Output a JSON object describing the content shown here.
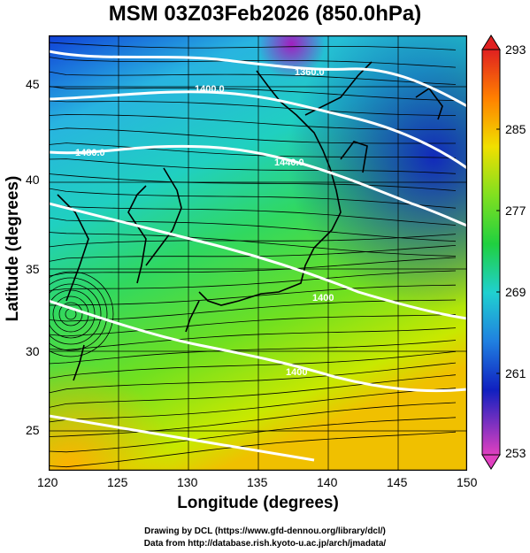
{
  "title": "MSM 03Z03Feb2026 (850.0hPa)",
  "axes": {
    "xlabel": "Longitude (degrees)",
    "ylabel": "Latitude  (degrees)",
    "xticks": [
      "120",
      "125",
      "130",
      "135",
      "140",
      "145",
      "150"
    ],
    "yticks": [
      "45",
      "40",
      "35",
      "30",
      "25"
    ]
  },
  "contour_labels": [
    "1360.0",
    "1400.0",
    "1440.0",
    "1480.0",
    "1400",
    "1400"
  ],
  "colorbar": {
    "ticks": [
      "293",
      "285",
      "277",
      "269",
      "261",
      "253"
    ],
    "min": 253,
    "max": 293
  },
  "credits": {
    "line1": "Drawing by DCL (https://www.gfd-dennou.org/library/dcl/)",
    "line2": "Data from http://database.rish.kyoto-u.ac.jp/arch/jmadata/"
  }
}
